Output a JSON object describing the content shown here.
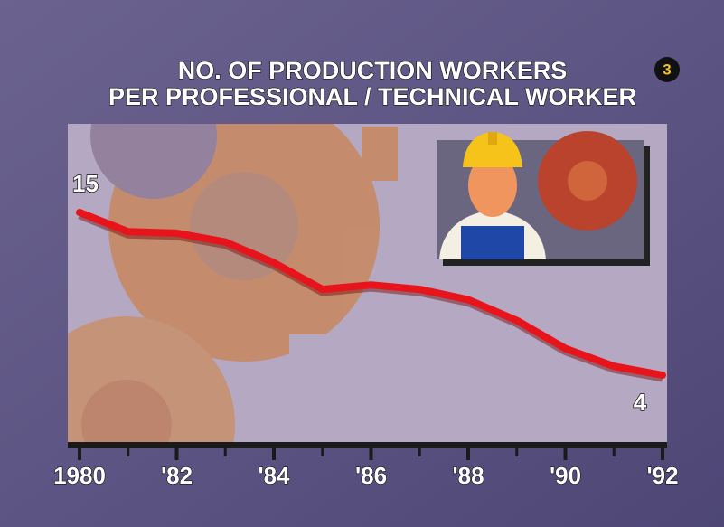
{
  "chart_data": {
    "type": "line",
    "title": [
      "NO. OF PRODUCTION WORKERS",
      "PER PROFESSIONAL / TECHNICAL WORKER"
    ],
    "badge": "3",
    "x": [
      1980,
      1981,
      1982,
      1983,
      1984,
      1985,
      1986,
      1987,
      1988,
      1989,
      1990,
      1991,
      1992
    ],
    "values": [
      15,
      13.7,
      13.6,
      13.0,
      11.6,
      9.8,
      10.1,
      9.8,
      9.1,
      7.7,
      5.8,
      4.6,
      4
    ],
    "color": "#e8141b",
    "xlim": [
      1980,
      1992
    ],
    "xticks": [
      1980,
      {
        "value": 1982,
        "label": "'82"
      },
      {
        "value": 1984,
        "label": "'84"
      },
      {
        "value": 1986,
        "label": "'86"
      },
      {
        "value": 1988,
        "label": "'88"
      },
      {
        "value": 1990,
        "label": "'90"
      },
      {
        "value": 1992,
        "label": "'92"
      }
    ]
  }
}
